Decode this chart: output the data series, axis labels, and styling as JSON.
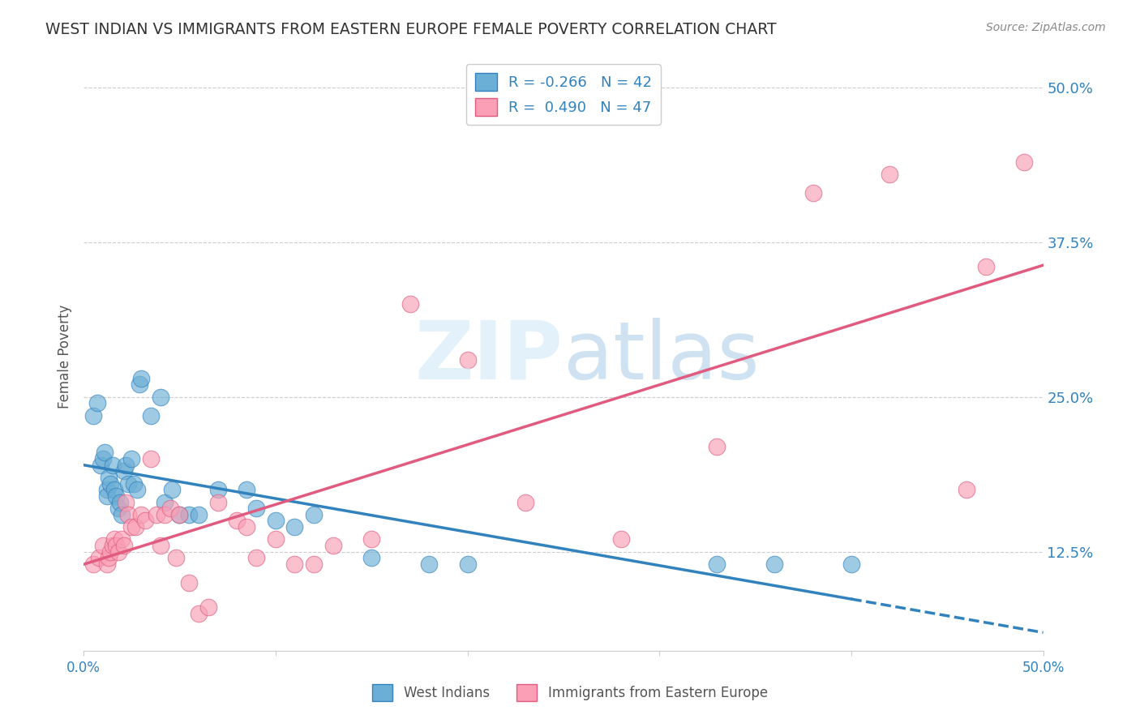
{
  "title": "WEST INDIAN VS IMMIGRANTS FROM EASTERN EUROPE FEMALE POVERTY CORRELATION CHART",
  "source": "Source: ZipAtlas.com",
  "ylabel": "Female Poverty",
  "ytick_labels": [
    "12.5%",
    "25.0%",
    "37.5%",
    "50.0%"
  ],
  "ytick_values": [
    0.125,
    0.25,
    0.375,
    0.5
  ],
  "xlim": [
    0.0,
    0.5
  ],
  "ylim": [
    0.045,
    0.52
  ],
  "color_blue": "#6baed6",
  "color_pink": "#fa9fb5",
  "line_blue": "#3182bd",
  "line_pink": "#e05b7f",
  "background": "#ffffff",
  "grid_color": "#cccccc",
  "west_indian_x": [
    0.005,
    0.007,
    0.009,
    0.01,
    0.011,
    0.012,
    0.012,
    0.013,
    0.014,
    0.015,
    0.016,
    0.017,
    0.018,
    0.019,
    0.02,
    0.021,
    0.022,
    0.023,
    0.025,
    0.026,
    0.028,
    0.029,
    0.03,
    0.035,
    0.04,
    0.042,
    0.046,
    0.05,
    0.055,
    0.06,
    0.07,
    0.085,
    0.09,
    0.1,
    0.11,
    0.12,
    0.15,
    0.18,
    0.2,
    0.33,
    0.36,
    0.4
  ],
  "west_indian_y": [
    0.235,
    0.245,
    0.195,
    0.2,
    0.205,
    0.175,
    0.17,
    0.185,
    0.18,
    0.195,
    0.175,
    0.17,
    0.16,
    0.165,
    0.155,
    0.19,
    0.195,
    0.18,
    0.2,
    0.18,
    0.175,
    0.26,
    0.265,
    0.235,
    0.25,
    0.165,
    0.175,
    0.155,
    0.155,
    0.155,
    0.175,
    0.175,
    0.16,
    0.15,
    0.145,
    0.155,
    0.12,
    0.115,
    0.115,
    0.115,
    0.115,
    0.115
  ],
  "eastern_europe_x": [
    0.005,
    0.008,
    0.01,
    0.012,
    0.013,
    0.014,
    0.015,
    0.016,
    0.017,
    0.018,
    0.02,
    0.021,
    0.022,
    0.023,
    0.025,
    0.027,
    0.03,
    0.032,
    0.035,
    0.038,
    0.04,
    0.042,
    0.045,
    0.048,
    0.05,
    0.055,
    0.06,
    0.065,
    0.07,
    0.08,
    0.085,
    0.09,
    0.1,
    0.11,
    0.12,
    0.13,
    0.15,
    0.17,
    0.2,
    0.23,
    0.28,
    0.33,
    0.38,
    0.42,
    0.46,
    0.47,
    0.49
  ],
  "eastern_europe_y": [
    0.115,
    0.12,
    0.13,
    0.115,
    0.12,
    0.125,
    0.13,
    0.135,
    0.13,
    0.125,
    0.135,
    0.13,
    0.165,
    0.155,
    0.145,
    0.145,
    0.155,
    0.15,
    0.2,
    0.155,
    0.13,
    0.155,
    0.16,
    0.12,
    0.155,
    0.1,
    0.075,
    0.08,
    0.165,
    0.15,
    0.145,
    0.12,
    0.135,
    0.115,
    0.115,
    0.13,
    0.135,
    0.325,
    0.28,
    0.165,
    0.135,
    0.21,
    0.415,
    0.43,
    0.175,
    0.355,
    0.44
  ]
}
